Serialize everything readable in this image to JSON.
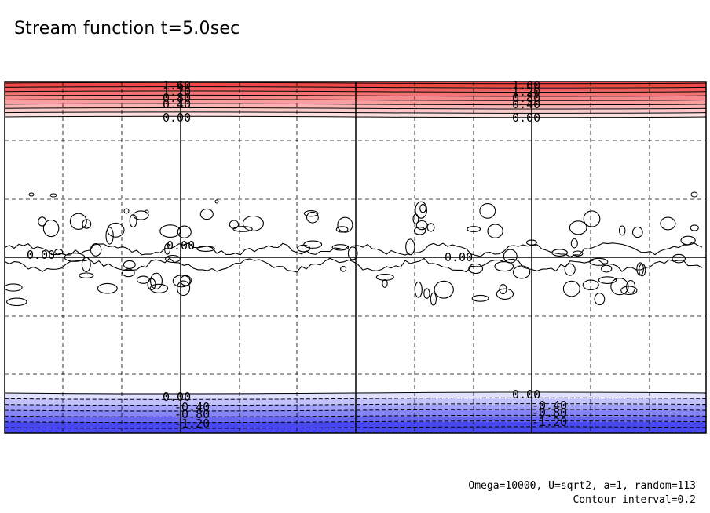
{
  "title": "Stream function t=5.0sec",
  "footer": {
    "params": "Omega=10000, U=sqrt2, a=1, random=113",
    "interval": "Contour interval=0.2"
  },
  "colors": {
    "positive_max": "#f04848",
    "positive_min": "#ffe0e0",
    "negative_max": "#4848f0",
    "negative_min": "#e0e0ff",
    "line": "#000000",
    "grid": "#000000"
  },
  "chart_data": {
    "type": "contour",
    "title": "Stream function t=5.0sec",
    "xlabel": "",
    "ylabel": "",
    "grid": true,
    "contour_interval": 0.2,
    "top_band": {
      "levels": [
        0.0,
        0.2,
        0.4,
        0.6,
        0.8,
        1.0,
        1.2,
        1.4,
        1.6
      ],
      "labels": [
        "1.60",
        "1.20",
        "0.80",
        "0.40",
        "0.00"
      ]
    },
    "center_labels": [
      "0.00",
      "0.00",
      "0.00"
    ],
    "bottom_band": {
      "levels": [
        0.0,
        -0.2,
        -0.4,
        -0.6,
        -0.8,
        -1.0,
        -1.2
      ],
      "labels": [
        "0.00",
        "-0.40",
        "-0.80",
        "-1.20"
      ]
    },
    "annotations": [
      "Omega=10000, U=sqrt2, a=1, random=113",
      "Contour interval=0.2"
    ]
  }
}
